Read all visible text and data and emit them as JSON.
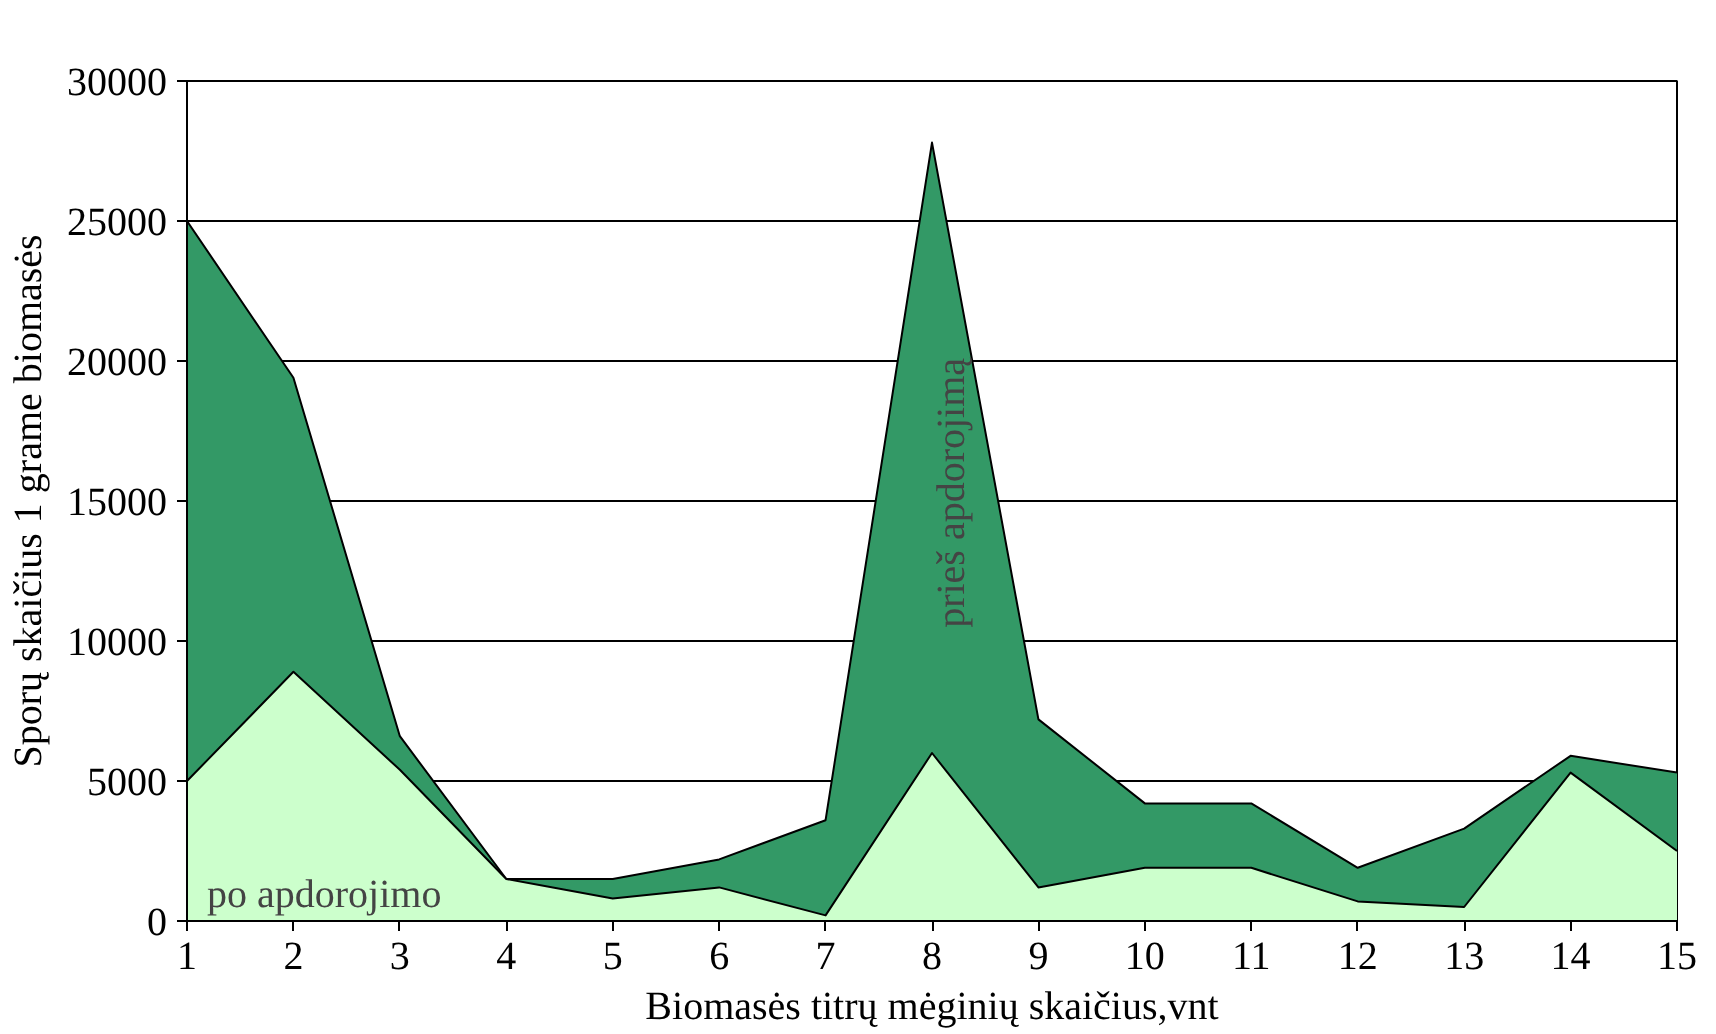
{
  "chart_data": {
    "type": "area",
    "xlabel": "Biomasės titrų mėginių skaičius,vnt",
    "ylabel": "Sporų skaičius 1 grame biomasės",
    "x": [
      1,
      2,
      3,
      4,
      5,
      6,
      7,
      8,
      9,
      10,
      11,
      12,
      13,
      14,
      15
    ],
    "series": [
      {
        "name": "prieš apdorojimą",
        "color": "#339966",
        "values": [
          25000,
          19400,
          6600,
          1500,
          1500,
          2200,
          3600,
          27800,
          7200,
          4200,
          4200,
          1900,
          3300,
          5900,
          5300
        ]
      },
      {
        "name": "po apdorojimo",
        "color": "#ccffcc",
        "values": [
          5000,
          8900,
          5400,
          1500,
          800,
          1200,
          200,
          6000,
          1200,
          1900,
          1900,
          700,
          500,
          5300,
          2500
        ]
      }
    ],
    "xlim": [
      1,
      15
    ],
    "xticks": [
      1,
      2,
      3,
      4,
      5,
      6,
      7,
      8,
      9,
      10,
      11,
      12,
      13,
      14,
      15
    ],
    "ylim": [
      0,
      30000
    ],
    "yticks": [
      0,
      5000,
      10000,
      15000,
      20000,
      25000,
      30000
    ],
    "grid": "y"
  }
}
